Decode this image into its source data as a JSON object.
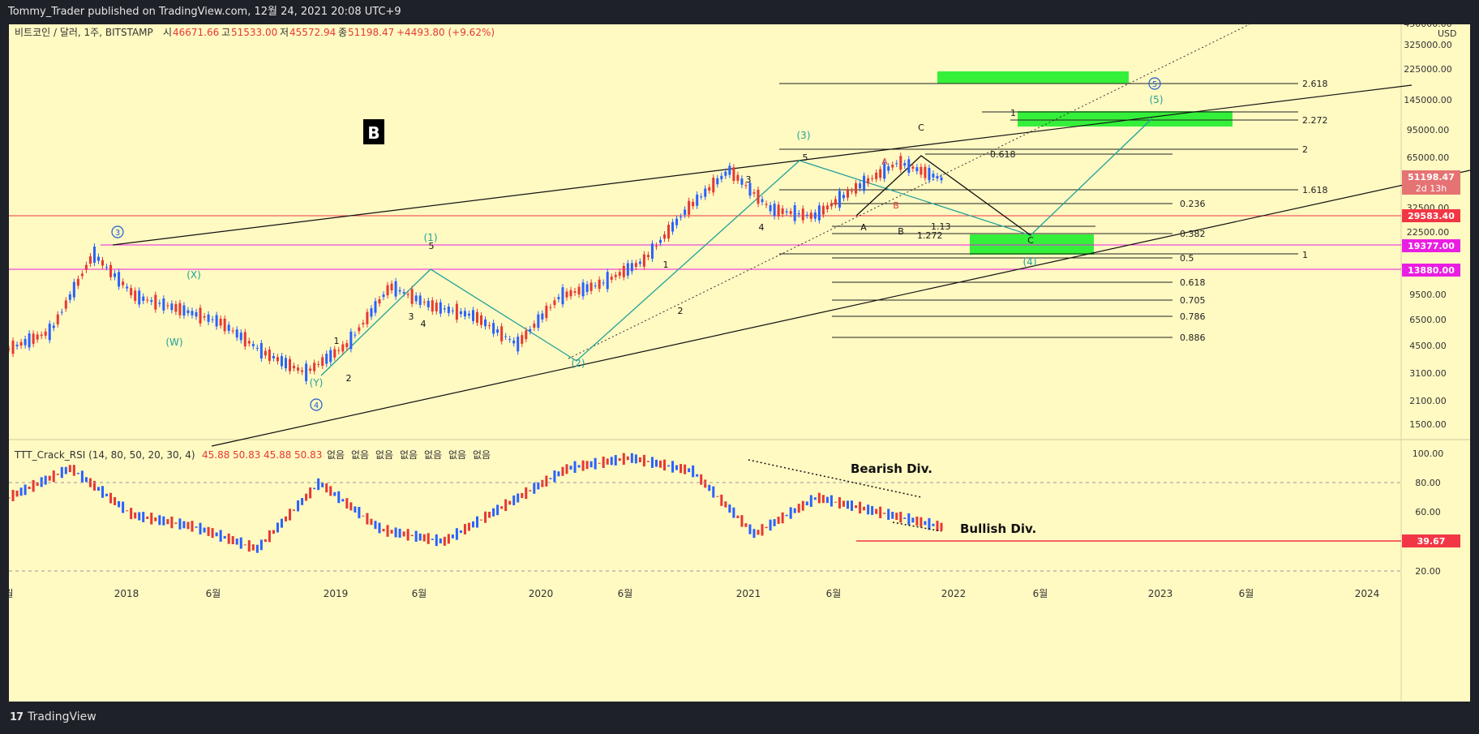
{
  "header": {
    "publisher_line": "Tommy_Trader published on TradingView.com, 12월 24, 2021 20:08 UTC+9"
  },
  "footer": {
    "brand": "TradingView",
    "logo_mark": "17"
  },
  "main_pane": {
    "symbol_label": "비트코인 / 달러, 1주, BITSTAMP",
    "ohlc": [
      {
        "k": "시",
        "v": "46671.66"
      },
      {
        "k": "고",
        "v": "51533.00"
      },
      {
        "k": "저",
        "v": "45572.94"
      },
      {
        "k": "종",
        "v": "51198.47"
      }
    ],
    "change": "+4493.80 (+9.62%)",
    "currency": "USD",
    "label_box": "B",
    "price_ticks": [
      "450000.00",
      "325000.00",
      "225000.00",
      "145000.00",
      "95000.00",
      "65000.00",
      "32500.00",
      "22500.00",
      "9500.00",
      "6500.00",
      "4500.00",
      "3100.00",
      "2100.00",
      "1500.00"
    ],
    "price_badges": [
      {
        "value": "51198.47",
        "sub": "2d 13h",
        "color": "#e57373"
      },
      {
        "value": "29583.40",
        "color": "#f23645"
      },
      {
        "value": "19377.00",
        "color": "#e91ee3"
      },
      {
        "value": "13880.00",
        "color": "#e91ee3"
      }
    ],
    "fib_labels": [
      "2.618",
      "2.272",
      "2",
      "1.618",
      "0.236",
      "0.382",
      "1",
      "0.5",
      "0.618",
      "0.705",
      "0.786",
      "0.886",
      "0.618",
      "1.13",
      "1.272",
      "1"
    ]
  },
  "wave_labels": {
    "circled": [
      "3",
      "4",
      "5"
    ],
    "primary": [
      "(1)",
      "(2)",
      "(3)",
      "(4)",
      "(5)",
      "(X)",
      "(W)",
      "(Y)"
    ],
    "minor": [
      "1",
      "2",
      "3",
      "4",
      "5",
      "1",
      "2",
      "3",
      "4",
      "5",
      "A",
      "B",
      "C",
      "A",
      "B",
      "C"
    ]
  },
  "rsi_pane": {
    "indicator_label": "TTT_Crack_RSI (14, 80, 50, 20, 30, 4)",
    "values": [
      "45.88",
      "50.83",
      "45.88",
      "50.83"
    ],
    "na_values": [
      "없음",
      "없음",
      "없음",
      "없음",
      "없음",
      "없음",
      "없음"
    ],
    "ticks": [
      "100.00",
      "80.00",
      "60.00",
      "40.00",
      "20.00"
    ],
    "bearish_label": "Bearish Div.",
    "bullish_label": "Bullish Div.",
    "current_badge": "39.67"
  },
  "chart_data": {
    "type": "line",
    "title": "",
    "scale": "log",
    "x_axis_labels": [
      "월",
      "2018",
      "6월",
      "2019",
      "6월",
      "2020",
      "6월",
      "2021",
      "6월",
      "2022",
      "6월",
      "2023",
      "6월",
      "2024"
    ],
    "price_series": {
      "name": "BTCUSD weekly close (approx.)",
      "x": [
        "2017-08",
        "2017-10",
        "2017-12",
        "2018-02",
        "2018-05",
        "2018-08",
        "2018-11",
        "2018-12",
        "2019-04",
        "2019-06",
        "2019-09",
        "2019-12",
        "2020-03",
        "2020-06",
        "2020-08",
        "2020-11",
        "2021-01",
        "2021-04",
        "2021-06",
        "2021-07",
        "2021-09",
        "2021-11",
        "2021-12"
      ],
      "y": [
        4500,
        5800,
        17500,
        9500,
        8000,
        6600,
        4300,
        3200,
        4800,
        11000,
        8300,
        7200,
        4800,
        9500,
        11500,
        16000,
        33000,
        58000,
        33000,
        30000,
        45000,
        65000,
        51198
      ]
    },
    "rsi_series": {
      "name": "RSI",
      "x": [
        "2017-08",
        "2017-12",
        "2018-03",
        "2018-08",
        "2018-12",
        "2019-06",
        "2019-12",
        "2020-03",
        "2020-08",
        "2020-12",
        "2021-01",
        "2021-04",
        "2021-07",
        "2021-10",
        "2021-11",
        "2021-12"
      ],
      "y": [
        70,
        90,
        58,
        50,
        35,
        80,
        48,
        40,
        65,
        90,
        97,
        88,
        45,
        70,
        60,
        50
      ]
    },
    "horizontal_levels": [
      29583.4,
      19377.0,
      13880.0
    ],
    "rsi_levels": [
      80,
      50,
      20
    ]
  }
}
